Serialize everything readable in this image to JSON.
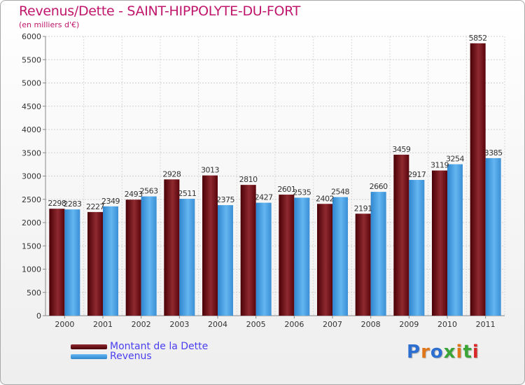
{
  "title": "Revenus/Dette - SAINT-HIPPOLYTE-DU-FORT",
  "subtitle": "(en milliers d'€)",
  "logo": "Proxiti",
  "colors": {
    "dette": "#6b0a10",
    "revenus": "#4aa3e6",
    "title": "#c0166b",
    "legend_text": "#4a3ef0"
  },
  "legend": [
    {
      "label": "Montant de la Dette",
      "color": "#6b0a10"
    },
    {
      "label": "Revenus",
      "color": "#4aa3e6"
    }
  ],
  "chart_data": {
    "type": "bar",
    "title": "Revenus/Dette - SAINT-HIPPOLYTE-DU-FORT",
    "subtitle": "(en milliers d'€)",
    "xlabel": "",
    "ylabel": "",
    "ylim": [
      0,
      6000
    ],
    "yticks": [
      0,
      500,
      1000,
      1500,
      2000,
      2500,
      3000,
      3500,
      4000,
      4500,
      5000,
      5500,
      6000
    ],
    "grid": true,
    "legend_position": "bottom-left",
    "categories": [
      "2000",
      "2001",
      "2002",
      "2003",
      "2004",
      "2005",
      "2006",
      "2007",
      "2008",
      "2009",
      "2010",
      "2011"
    ],
    "series": [
      {
        "name": "Montant de la Dette",
        "values": [
          2298,
          2227,
          2493,
          2928,
          3013,
          2810,
          2601,
          2402,
          2191,
          3459,
          3119,
          5852
        ]
      },
      {
        "name": "Revenus",
        "values": [
          2283,
          2349,
          2563,
          2511,
          2375,
          2427,
          2535,
          2548,
          2660,
          2917,
          3254,
          3385
        ]
      }
    ]
  }
}
